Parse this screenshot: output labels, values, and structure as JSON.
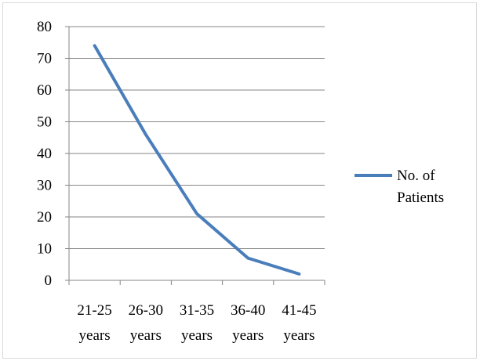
{
  "chart_data": {
    "type": "line",
    "categories": [
      "21-25 years",
      "26-30 years",
      "31-35 years",
      "36-40 years",
      "41-45 years"
    ],
    "category_label_lines": [
      [
        "21-25",
        "years"
      ],
      [
        "26-30",
        "years"
      ],
      [
        "31-35",
        "years"
      ],
      [
        "36-40",
        "years"
      ],
      [
        "41-45",
        "years"
      ]
    ],
    "series": [
      {
        "name": "No. of Patients",
        "legend_lines": [
          "No. of",
          "Patients"
        ],
        "values": [
          74,
          46,
          21,
          7,
          2
        ],
        "color": "#4a7ebb"
      }
    ],
    "title": "",
    "xlabel": "",
    "ylabel": "",
    "ylim": [
      0,
      80
    ],
    "yticks": [
      0,
      10,
      20,
      30,
      40,
      50,
      60,
      70,
      80
    ],
    "grid": true,
    "legend_position": "right",
    "gridline_color": "#868686"
  }
}
